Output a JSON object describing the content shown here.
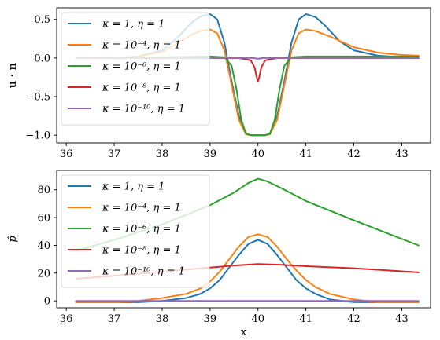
{
  "chart_data": [
    {
      "type": "line",
      "xlabel": "",
      "ylabel": "u · n",
      "xlim": [
        35.8,
        43.6
      ],
      "ylim": [
        -1.1,
        0.65
      ],
      "xticks": [
        "36",
        "37",
        "38",
        "39",
        "40",
        "41",
        "42",
        "43"
      ],
      "yticks": [
        "−1.0",
        "−0.5",
        "0.0",
        "0.5"
      ],
      "ytick_values": [
        -1.0,
        -0.5,
        0.0,
        0.5
      ],
      "xtick_values": [
        36,
        37,
        38,
        39,
        40,
        41,
        42,
        43
      ],
      "legend_position": "upper-left",
      "series": [
        {
          "name": "κ = 1, η = 1",
          "color": "#1f77b4",
          "x": [
            36.2,
            37.0,
            37.5,
            38.0,
            38.3,
            38.6,
            38.8,
            39.0,
            39.15,
            39.3,
            39.45,
            39.6,
            39.75,
            39.85,
            40.0,
            40.15,
            40.25,
            40.4,
            40.55,
            40.7,
            40.85,
            41.0,
            41.2,
            41.4,
            41.7,
            42.0,
            42.5,
            43.0,
            43.35
          ],
          "y": [
            0.0,
            0.0,
            0.02,
            0.1,
            0.25,
            0.45,
            0.54,
            0.57,
            0.5,
            0.2,
            -0.3,
            -0.75,
            -0.98,
            -1.0,
            -1.0,
            -1.0,
            -0.98,
            -0.75,
            -0.3,
            0.2,
            0.5,
            0.57,
            0.53,
            0.42,
            0.22,
            0.1,
            0.03,
            0.01,
            0.0
          ]
        },
        {
          "name": "κ = 10⁻⁴, η = 1",
          "color": "#ff7f0e",
          "x": [
            36.2,
            37.0,
            37.5,
            38.0,
            38.3,
            38.6,
            38.8,
            39.0,
            39.15,
            39.3,
            39.45,
            39.6,
            39.75,
            39.85,
            40.0,
            40.15,
            40.25,
            40.4,
            40.55,
            40.7,
            40.85,
            41.0,
            41.2,
            41.5,
            42.0,
            42.5,
            43.0,
            43.35
          ],
          "y": [
            0.0,
            0.0,
            0.02,
            0.08,
            0.18,
            0.3,
            0.35,
            0.37,
            0.32,
            0.1,
            -0.35,
            -0.8,
            -0.99,
            -1.0,
            -1.0,
            -1.0,
            -0.99,
            -0.8,
            -0.35,
            0.1,
            0.32,
            0.37,
            0.35,
            0.28,
            0.14,
            0.07,
            0.04,
            0.03
          ]
        },
        {
          "name": "κ = 10⁻⁶, η = 1",
          "color": "#2ca02c",
          "x": [
            36.2,
            38.0,
            39.0,
            39.3,
            39.45,
            39.55,
            39.65,
            39.75,
            39.85,
            40.0,
            40.15,
            40.25,
            40.35,
            40.45,
            40.55,
            40.7,
            41.0,
            42.0,
            43.35
          ],
          "y": [
            0.0,
            0.01,
            0.02,
            0.01,
            -0.1,
            -0.4,
            -0.8,
            -0.98,
            -1.0,
            -1.0,
            -1.0,
            -0.98,
            -0.8,
            -0.4,
            -0.1,
            0.01,
            0.02,
            0.02,
            0.02
          ]
        },
        {
          "name": "κ = 10⁻⁸, η = 1",
          "color": "#d62728",
          "x": [
            36.2,
            39.6,
            39.85,
            39.93,
            39.97,
            40.0,
            40.03,
            40.07,
            40.15,
            40.4,
            43.35
          ],
          "y": [
            0.0,
            0.0,
            -0.03,
            -0.12,
            -0.24,
            -0.3,
            -0.24,
            -0.12,
            -0.03,
            0.0,
            0.0
          ]
        },
        {
          "name": "κ = 10⁻¹⁰, η = 1",
          "color": "#9467bd",
          "x": [
            36.2,
            39.9,
            40.0,
            40.1,
            43.35
          ],
          "y": [
            0.0,
            0.0,
            -0.01,
            0.0,
            0.0
          ]
        }
      ]
    },
    {
      "type": "line",
      "xlabel": "x",
      "ylabel": "p̂",
      "xlim": [
        35.8,
        43.6
      ],
      "ylim": [
        -5,
        94
      ],
      "xticks": [
        "36",
        "37",
        "38",
        "39",
        "40",
        "41",
        "42",
        "43"
      ],
      "yticks": [
        "0",
        "20",
        "40",
        "60",
        "80"
      ],
      "ytick_values": [
        0,
        20,
        40,
        60,
        80
      ],
      "xtick_values": [
        36,
        37,
        38,
        39,
        40,
        41,
        42,
        43
      ],
      "legend_position": "upper-left",
      "series": [
        {
          "name": "κ = 1, η = 1",
          "color": "#1f77b4",
          "x": [
            36.2,
            37.5,
            38.0,
            38.5,
            38.8,
            39.0,
            39.2,
            39.4,
            39.6,
            39.8,
            40.0,
            40.2,
            40.4,
            40.6,
            40.8,
            41.0,
            41.2,
            41.5,
            42.0,
            42.5,
            43.35
          ],
          "y": [
            -1,
            -1,
            0,
            2,
            5,
            9,
            15,
            24,
            33,
            41,
            44,
            41,
            33,
            24,
            15,
            9,
            5,
            1,
            -1,
            -1,
            -1
          ]
        },
        {
          "name": "κ = 10⁻⁴, η = 1",
          "color": "#ff7f0e",
          "x": [
            36.2,
            37.0,
            37.5,
            38.0,
            38.5,
            38.8,
            39.0,
            39.2,
            39.4,
            39.6,
            39.8,
            40.0,
            40.2,
            40.4,
            40.6,
            40.8,
            41.0,
            41.2,
            41.5,
            42.0,
            42.5,
            43.35
          ],
          "y": [
            -1,
            -1,
            0,
            2,
            5,
            9,
            14,
            21,
            30,
            39,
            46,
            48,
            46,
            39,
            30,
            22,
            15,
            10,
            5,
            1,
            -1,
            -1
          ]
        },
        {
          "name": "κ = 10⁻⁶, η = 1",
          "color": "#2ca02c",
          "x": [
            36.2,
            37.0,
            38.0,
            39.0,
            39.5,
            39.8,
            40.0,
            40.2,
            40.5,
            41.0,
            42.0,
            43.35
          ],
          "y": [
            36,
            44,
            55,
            69,
            78,
            85,
            88,
            86,
            81,
            72,
            58,
            40
          ]
        },
        {
          "name": "κ = 10⁻⁸, η = 1",
          "color": "#d62728",
          "x": [
            36.2,
            37.0,
            38.0,
            39.0,
            39.5,
            40.0,
            40.5,
            41.0,
            42.0,
            43.35
          ],
          "y": [
            16,
            18,
            21,
            24,
            25.5,
            26.5,
            26,
            25,
            23.5,
            20.5
          ]
        },
        {
          "name": "κ = 10⁻¹⁰, η = 1",
          "color": "#9467bd",
          "x": [
            36.2,
            40.0,
            43.35
          ],
          "y": [
            0,
            0,
            0
          ]
        }
      ]
    }
  ]
}
